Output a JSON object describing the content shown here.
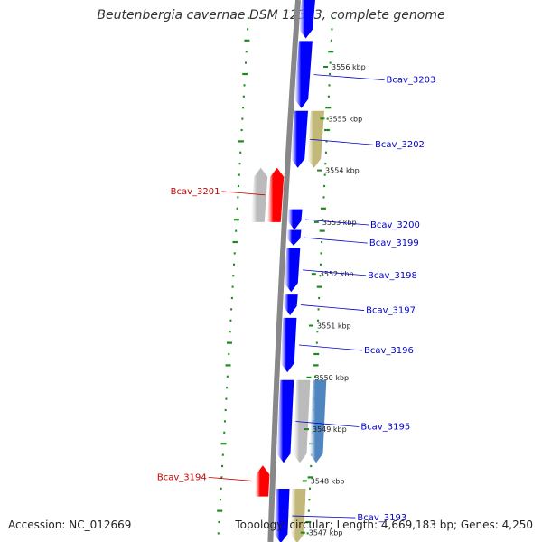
{
  "title": "Beutenbergia cavernae DSM 12333, complete genome",
  "accession": "Accession: NC_012669",
  "topology": "Topology: circular; Length: 4,669,183 bp; Genes: 4,250",
  "colors": {
    "backbone": "#888888",
    "forward_gene": "#0000ff",
    "reverse_gene": "#ff0000",
    "rna_gene": "#c2b87a",
    "pseudo_gene": "#bbbbbb",
    "other_gene": "#4f86c0",
    "gene_label": "#0000cc",
    "reverse_label": "#cc0000",
    "gc_ticks": "#1a8a1a"
  },
  "scale_ticks": [
    {
      "kbp": 3556,
      "label": "3556 kbp"
    },
    {
      "kbp": 3555,
      "label": "3555 kbp"
    },
    {
      "kbp": 3554,
      "label": "3554 kbp"
    },
    {
      "kbp": 3553,
      "label": "3553 kbp"
    },
    {
      "kbp": 3552,
      "label": "3552 kbp"
    },
    {
      "kbp": 3551,
      "label": "3551 kbp"
    },
    {
      "kbp": 3550,
      "label": "3550 kbp"
    },
    {
      "kbp": 3549,
      "label": "3549 kbp"
    },
    {
      "kbp": 3548,
      "label": "3548 kbp"
    },
    {
      "kbp": 3547,
      "label": "3547 kbp"
    }
  ],
  "genes": [
    {
      "start": 3556.55,
      "end": 3557.3,
      "strand": "+",
      "kind": "forward"
    },
    {
      "start": 3555.2,
      "end": 3556.5,
      "strand": "+",
      "kind": "forward",
      "label": "Bcav_3203"
    },
    {
      "start": 3554.05,
      "end": 3555.15,
      "strand": "+",
      "kind": "forward",
      "label": "Bcav_3202"
    },
    {
      "start": 3554.05,
      "end": 3555.15,
      "strand": "+",
      "kind": "rna",
      "lane": 2
    },
    {
      "start": 3553.0,
      "end": 3554.05,
      "strand": "-",
      "kind": "reverse",
      "label": "Bcav_3201"
    },
    {
      "start": 3553.0,
      "end": 3554.05,
      "strand": "-",
      "kind": "pseudo",
      "lane": 2
    },
    {
      "start": 3552.85,
      "end": 3553.25,
      "strand": "+",
      "kind": "forward",
      "label": "Bcav_3200"
    },
    {
      "start": 3552.55,
      "end": 3552.85,
      "strand": "+",
      "kind": "forward",
      "label": "Bcav_3199"
    },
    {
      "start": 3551.65,
      "end": 3552.5,
      "strand": "+",
      "kind": "forward",
      "label": "Bcav_3198"
    },
    {
      "start": 3551.2,
      "end": 3551.6,
      "strand": "+",
      "kind": "forward",
      "label": "Bcav_3197"
    },
    {
      "start": 3550.1,
      "end": 3551.15,
      "strand": "+",
      "kind": "forward",
      "label": "Bcav_3196"
    },
    {
      "start": 3548.35,
      "end": 3549.95,
      "strand": "+",
      "kind": "forward",
      "label": "Bcav_3195"
    },
    {
      "start": 3548.35,
      "end": 3549.95,
      "strand": "+",
      "kind": "pseudo",
      "lane": 2
    },
    {
      "start": 3548.35,
      "end": 3549.95,
      "strand": "+",
      "kind": "other",
      "lane": 3
    },
    {
      "start": 3547.7,
      "end": 3548.3,
      "strand": "-",
      "kind": "reverse",
      "label": "Bcav_3194"
    },
    {
      "start": 3546.8,
      "end": 3547.85,
      "strand": "+",
      "kind": "forward",
      "label": "Bcav_3193"
    },
    {
      "start": 3546.8,
      "end": 3547.85,
      "strand": "+",
      "kind": "rna",
      "lane": 2
    }
  ]
}
